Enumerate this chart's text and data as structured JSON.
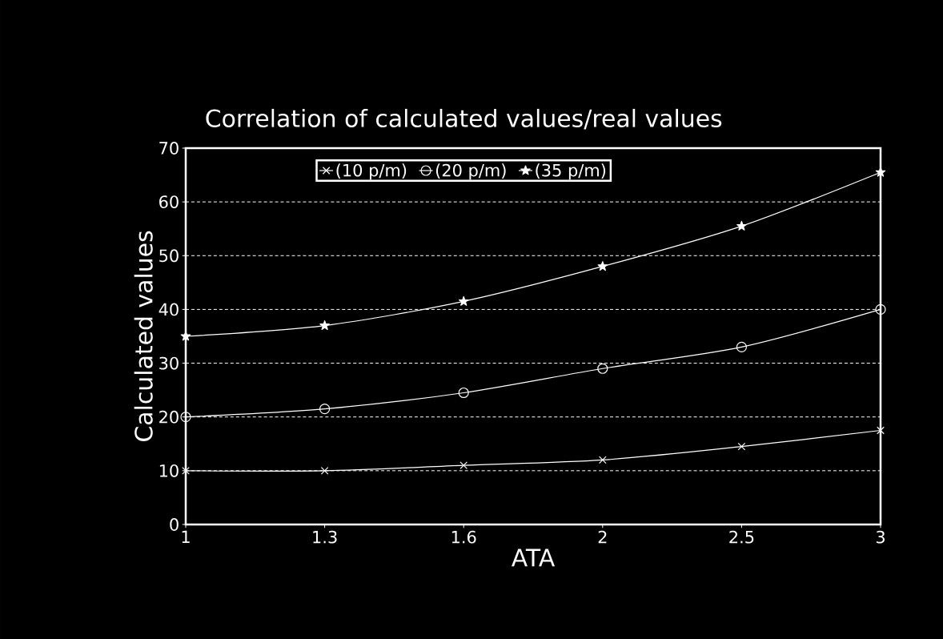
{
  "chart_data": {
    "type": "line",
    "title": "Correlation of calculated values/real values",
    "xlabel": "ATA",
    "ylabel": "Calculated values",
    "categories": [
      "1",
      "1.3",
      "1.6",
      "2",
      "2.5",
      "3"
    ],
    "series": [
      {
        "name": "(10 p/m)",
        "color": "#ffffff",
        "marker": "cross",
        "values": [
          10,
          10,
          11,
          12,
          14.5,
          17.5
        ]
      },
      {
        "name": "(20 p/m)",
        "color": "#ffffff",
        "marker": "circle",
        "values": [
          20,
          21.5,
          24.5,
          29,
          33,
          40
        ]
      },
      {
        "name": "(35 p/m)",
        "color": "#ffffff",
        "marker": "star",
        "values": [
          35,
          37,
          41.5,
          48,
          55.5,
          65.5
        ]
      }
    ],
    "ylim": [
      0,
      70
    ],
    "yticks": [
      0,
      10,
      20,
      30,
      40,
      50,
      60,
      70
    ],
    "grid": "y",
    "legend": "top",
    "line_style": "solid"
  }
}
